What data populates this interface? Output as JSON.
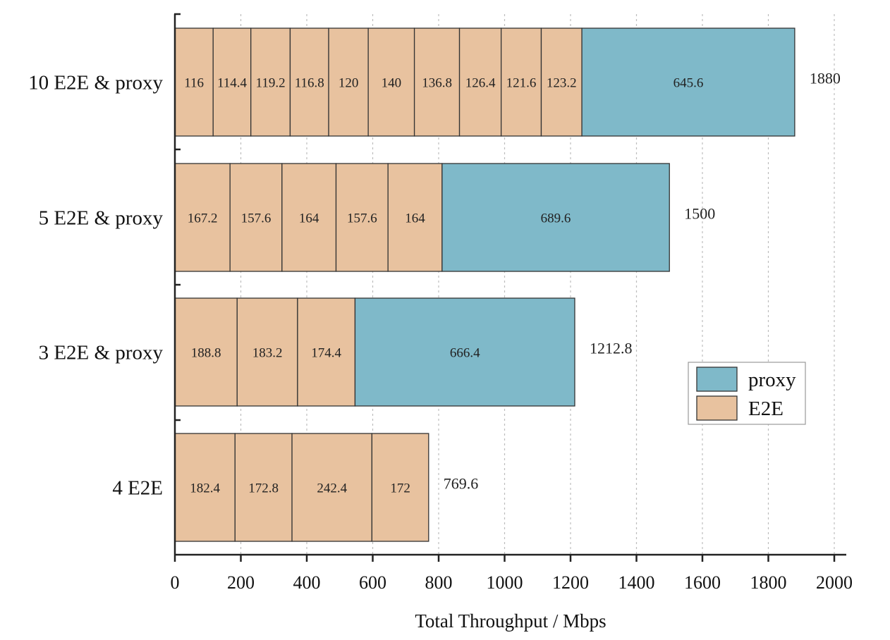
{
  "chart_data": {
    "type": "bar",
    "orientation": "horizontal",
    "stacked": true,
    "xlabel": "Total Throughput / Mbps",
    "xlim": [
      0,
      2000
    ],
    "xticks": [
      0,
      200,
      400,
      600,
      800,
      1000,
      1200,
      1400,
      1600,
      1800,
      2000
    ],
    "grid": "vertical dotted",
    "legend": {
      "position": "right",
      "entries": [
        {
          "name": "proxy",
          "color": "#7fb9c9"
        },
        {
          "name": "E2E",
          "color": "#e8c29f"
        }
      ]
    },
    "categories": [
      "10 E2E & proxy",
      "5 E2E &  proxy",
      "3 E2E &  proxy",
      "4 E2E"
    ],
    "bars": [
      {
        "category": "10 E2E & proxy",
        "e2e": [
          116,
          114.4,
          119.2,
          116.8,
          120,
          140,
          136.8,
          126.4,
          121.6,
          123.2
        ],
        "proxy": 645.6,
        "total": "1880"
      },
      {
        "category": "5 E2E &  proxy",
        "e2e": [
          167.2,
          157.6,
          164,
          157.6,
          164
        ],
        "proxy": 689.6,
        "total": "1500"
      },
      {
        "category": "3 E2E &  proxy",
        "e2e": [
          188.8,
          183.2,
          174.4
        ],
        "proxy": 666.4,
        "total": "1212.8"
      },
      {
        "category": "4 E2E",
        "e2e": [
          182.4,
          172.8,
          242.4,
          172
        ],
        "proxy": null,
        "total": "769.6"
      }
    ]
  }
}
